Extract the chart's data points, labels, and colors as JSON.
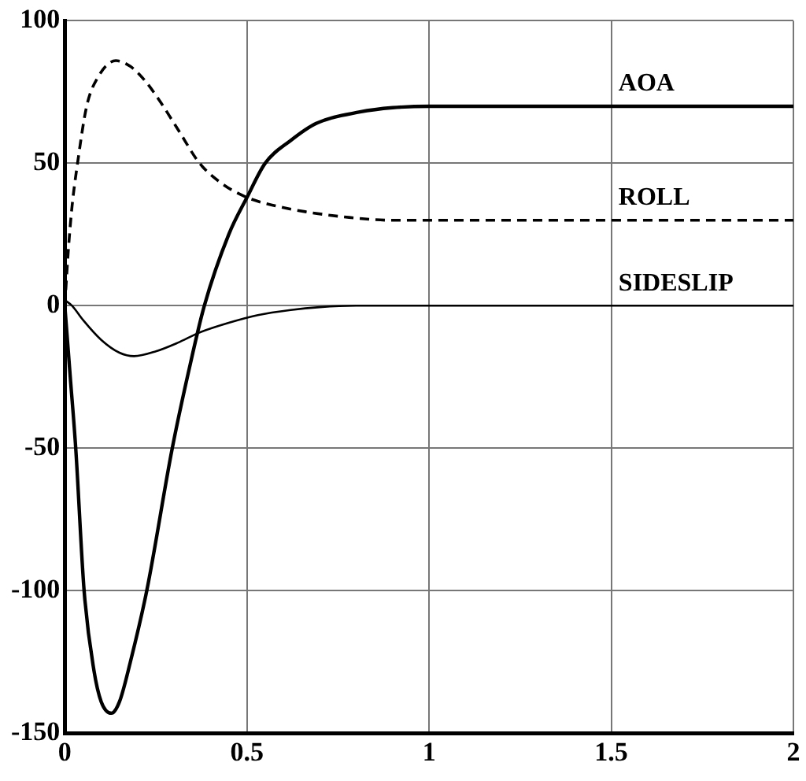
{
  "chart_data": {
    "type": "line",
    "xlim": [
      0,
      2
    ],
    "ylim": [
      -150,
      100
    ],
    "xticks": [
      0,
      0.5,
      1,
      1.5,
      2
    ],
    "yticks": [
      -150,
      -100,
      -50,
      0,
      50,
      100
    ],
    "grid": true,
    "legend": false,
    "marker": "none",
    "series": [
      {
        "name": "AOA",
        "color": "#000000",
        "line_style": "solid",
        "x": [
          0,
          0.015,
          0.03,
          0.053,
          0.08,
          0.1,
          0.128,
          0.15,
          0.18,
          0.225,
          0.295,
          0.34,
          0.383,
          0.45,
          0.5,
          0.55,
          0.62,
          0.69,
          0.81,
          0.9,
          1,
          1.5,
          2
        ],
        "values": [
          0,
          -25,
          -50,
          -100,
          -128,
          -139,
          -143,
          -139,
          -125,
          -100,
          -50,
          -23,
          0,
          25,
          38,
          50,
          58,
          64,
          68,
          69.5,
          70,
          70,
          70
        ]
      },
      {
        "name": "ROLL",
        "color": "#000000",
        "line_style": "dashed",
        "x": [
          0,
          0.01,
          0.02,
          0.035,
          0.06,
          0.09,
          0.14,
          0.18,
          0.22,
          0.26,
          0.31,
          0.37,
          0.43,
          0.5,
          0.58,
          0.66,
          0.78,
          0.9,
          1.2,
          2
        ],
        "values": [
          0,
          20,
          35,
          50,
          70,
          80,
          86,
          84,
          79,
          72,
          62,
          50,
          43,
          38,
          35,
          33,
          31,
          30,
          30,
          30
        ]
      },
      {
        "name": "SIDESLIP",
        "color": "#000000",
        "line_style": "solid",
        "x": [
          0,
          0.02,
          0.05,
          0.1,
          0.15,
          0.19,
          0.25,
          0.31,
          0.37,
          0.45,
          0.53,
          0.62,
          0.7,
          0.8,
          1,
          2
        ],
        "values": [
          2,
          0,
          -5,
          -12,
          -16.5,
          -17.7,
          -16,
          -13,
          -9.4,
          -6,
          -3.3,
          -1.5,
          -0.5,
          0,
          0,
          0
        ]
      }
    ]
  }
}
